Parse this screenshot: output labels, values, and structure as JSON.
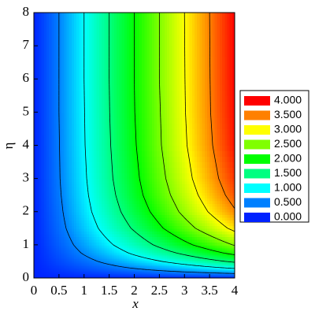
{
  "chart_data": {
    "type": "contour",
    "x_label": "x",
    "y_label": "η",
    "xlim": [
      0,
      4
    ],
    "ylim": [
      0,
      8
    ],
    "xticks": [
      0,
      0.5,
      1,
      1.5,
      2,
      2.5,
      3,
      3.5,
      4
    ],
    "yticks": [
      0,
      1,
      2,
      3,
      4,
      5,
      6,
      7,
      8
    ],
    "x": [
      0,
      0.5,
      1,
      1.5,
      2,
      2.5,
      3,
      3.5,
      4
    ],
    "y": [
      0,
      0.1,
      0.2,
      0.3,
      0.5,
      0.75,
      1,
      1.5,
      2,
      2.5,
      3,
      4,
      5,
      6,
      8
    ],
    "z": [
      [
        0,
        0,
        0,
        0,
        0,
        0,
        0,
        0,
        0
      ],
      [
        0,
        0.05,
        0.1,
        0.14,
        0.19,
        0.24,
        0.29,
        0.33,
        0.38
      ],
      [
        0,
        0.09,
        0.18,
        0.27,
        0.36,
        0.45,
        0.54,
        0.63,
        0.72
      ],
      [
        0,
        0.13,
        0.26,
        0.39,
        0.52,
        0.65,
        0.78,
        0.91,
        1.04
      ],
      [
        0,
        0.2,
        0.39,
        0.59,
        0.79,
        0.98,
        1.18,
        1.38,
        1.57
      ],
      [
        0,
        0.26,
        0.53,
        0.79,
        1.06,
        1.32,
        1.58,
        1.85,
        2.11
      ],
      [
        0,
        0.32,
        0.63,
        0.95,
        1.26,
        1.58,
        1.9,
        2.21,
        2.53
      ],
      [
        0,
        0.39,
        0.78,
        1.17,
        1.55,
        1.94,
        2.33,
        2.72,
        3.11
      ],
      [
        0,
        0.43,
        0.87,
        1.3,
        1.73,
        2.16,
        2.6,
        3.03,
        3.46
      ],
      [
        0,
        0.46,
        0.92,
        1.38,
        1.84,
        2.3,
        2.75,
        3.21,
        3.67
      ],
      [
        0,
        0.48,
        0.95,
        1.43,
        1.9,
        2.38,
        2.85,
        3.33,
        3.8
      ],
      [
        0,
        0.49,
        0.98,
        1.47,
        1.96,
        2.46,
        2.95,
        3.44,
        3.93
      ],
      [
        0,
        0.5,
        0.99,
        1.49,
        1.99,
        2.48,
        2.98,
        3.48,
        3.97
      ],
      [
        0,
        0.5,
        1,
        1.5,
        2,
        2.5,
        2.99,
        3.49,
        3.99
      ],
      [
        0,
        0.5,
        1,
        1.5,
        2,
        2.5,
        3,
        3.5,
        4
      ]
    ],
    "levels": [
      {
        "value": 4,
        "label": "4.000",
        "color": "#ff0000"
      },
      {
        "value": 3.5,
        "label": "3.500",
        "color": "#ff8000"
      },
      {
        "value": 3,
        "label": "3.000",
        "color": "#ffff00"
      },
      {
        "value": 2.5,
        "label": "2.500",
        "color": "#80ff00"
      },
      {
        "value": 2,
        "label": "2.000",
        "color": "#00ff00"
      },
      {
        "value": 1.5,
        "label": "1.500",
        "color": "#00ff80"
      },
      {
        "value": 1,
        "label": "1.000",
        "color": "#00ffff"
      },
      {
        "value": 0.5,
        "label": "0.500",
        "color": "#0080ff"
      },
      {
        "value": 0,
        "label": "0.000",
        "color": "#0022ff"
      }
    ],
    "contour_color": "#000000"
  }
}
